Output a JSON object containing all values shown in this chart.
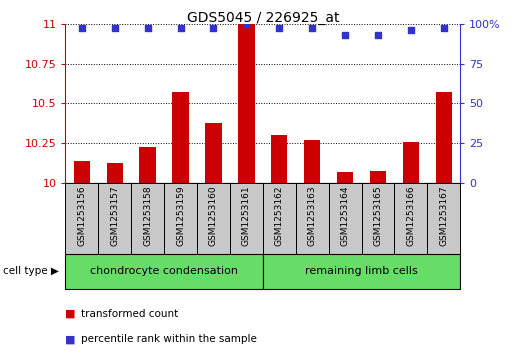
{
  "title": "GDS5045 / 226925_at",
  "samples": [
    "GSM1253156",
    "GSM1253157",
    "GSM1253158",
    "GSM1253159",
    "GSM1253160",
    "GSM1253161",
    "GSM1253162",
    "GSM1253163",
    "GSM1253164",
    "GSM1253165",
    "GSM1253166",
    "GSM1253167"
  ],
  "bar_values": [
    10.14,
    10.13,
    10.23,
    10.57,
    10.38,
    11.0,
    10.3,
    10.27,
    10.07,
    10.08,
    10.26,
    10.57
  ],
  "percentile_values": [
    97,
    97,
    97,
    97,
    97,
    100,
    97,
    97,
    93,
    93,
    96,
    97
  ],
  "bar_color": "#cc0000",
  "dot_color": "#3333cc",
  "ylim_left": [
    10,
    11
  ],
  "ylim_right": [
    0,
    100
  ],
  "yticks_left": [
    10,
    10.25,
    10.5,
    10.75,
    11
  ],
  "ytick_labels_left": [
    "10",
    "10.25",
    "10.5",
    "10.75",
    "11"
  ],
  "yticks_right": [
    0,
    25,
    50,
    75,
    100
  ],
  "ytick_labels_right": [
    "0",
    "25",
    "50",
    "75",
    "100%"
  ],
  "groups": [
    {
      "label": "chondrocyte condensation",
      "start": 0,
      "end": 6,
      "color": "#66dd66"
    },
    {
      "label": "remaining limb cells",
      "start": 6,
      "end": 12,
      "color": "#66dd66"
    }
  ],
  "cell_type_label": "cell type",
  "legend_items": [
    {
      "label": "transformed count",
      "color": "#cc0000"
    },
    {
      "label": "percentile rank within the sample",
      "color": "#3333cc"
    }
  ],
  "sample_bg_color": "#c8c8c8",
  "plot_bg": "#ffffff",
  "bar_width": 0.5
}
